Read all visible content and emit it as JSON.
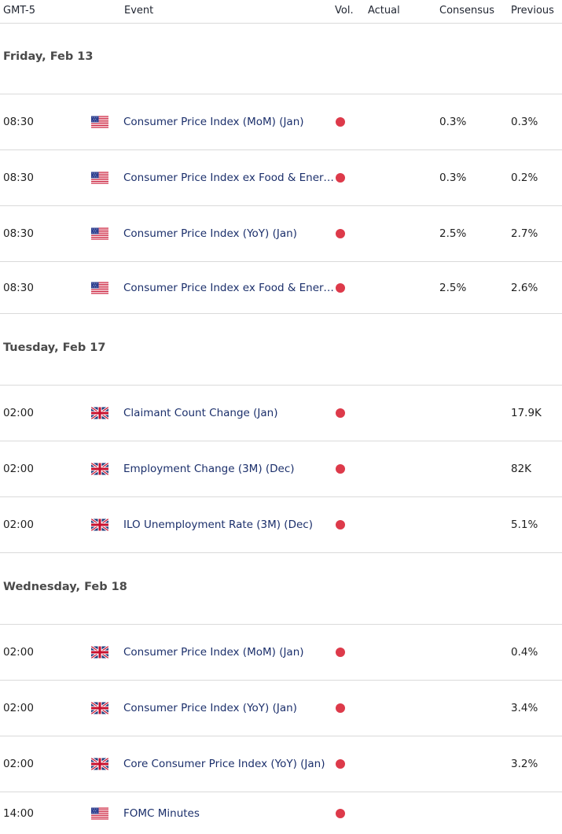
{
  "header": {
    "timezone": "GMT-5",
    "event": "Event",
    "vol": "Vol.",
    "actual": "Actual",
    "consensus": "Consensus",
    "previous": "Previous"
  },
  "colors": {
    "volatility_high": "#dd3a4a",
    "event_text": "#1b2f6b",
    "divider": "#dadada"
  },
  "days": [
    {
      "label": "Friday, Feb 13",
      "events": [
        {
          "time": "08:30",
          "flag": "us-flag-icon",
          "event": "Consumer Price Index (MoM) (Jan)",
          "actual": "",
          "consensus": "0.3%",
          "previous": "0.3%"
        },
        {
          "time": "08:30",
          "flag": "us-flag-icon",
          "event": "Consumer Price Index ex Food & Energy (MoM) (Jan)",
          "actual": "",
          "consensus": "0.3%",
          "previous": "0.2%"
        },
        {
          "time": "08:30",
          "flag": "us-flag-icon",
          "event": "Consumer Price Index (YoY) (Jan)",
          "actual": "",
          "consensus": "2.5%",
          "previous": "2.7%"
        },
        {
          "time": "08:30",
          "flag": "us-flag-icon",
          "event": "Consumer Price Index ex Food & Energy (YoY) (Jan)",
          "actual": "",
          "consensus": "2.5%",
          "previous": "2.6%"
        }
      ]
    },
    {
      "label": "Tuesday, Feb 17",
      "events": [
        {
          "time": "02:00",
          "flag": "uk-flag-icon",
          "event": "Claimant Count Change (Jan)",
          "actual": "",
          "consensus": "",
          "previous": "17.9K"
        },
        {
          "time": "02:00",
          "flag": "uk-flag-icon",
          "event": "Employment Change (3M) (Dec)",
          "actual": "",
          "consensus": "",
          "previous": "82K"
        },
        {
          "time": "02:00",
          "flag": "uk-flag-icon",
          "event": "ILO Unemployment Rate (3M) (Dec)",
          "actual": "",
          "consensus": "",
          "previous": "5.1%"
        }
      ]
    },
    {
      "label": "Wednesday, Feb 18",
      "events": [
        {
          "time": "02:00",
          "flag": "uk-flag-icon",
          "event": "Consumer Price Index (MoM) (Jan)",
          "actual": "",
          "consensus": "",
          "previous": "0.4%"
        },
        {
          "time": "02:00",
          "flag": "uk-flag-icon",
          "event": "Consumer Price Index (YoY) (Jan)",
          "actual": "",
          "consensus": "",
          "previous": "3.4%"
        },
        {
          "time": "02:00",
          "flag": "uk-flag-icon",
          "event": "Core Consumer Price Index (YoY) (Jan)",
          "actual": "",
          "consensus": "",
          "previous": "3.2%"
        },
        {
          "time": "14:00",
          "flag": "us-flag-icon",
          "event": "FOMC Minutes",
          "actual": "",
          "consensus": "",
          "previous": ""
        }
      ]
    }
  ]
}
